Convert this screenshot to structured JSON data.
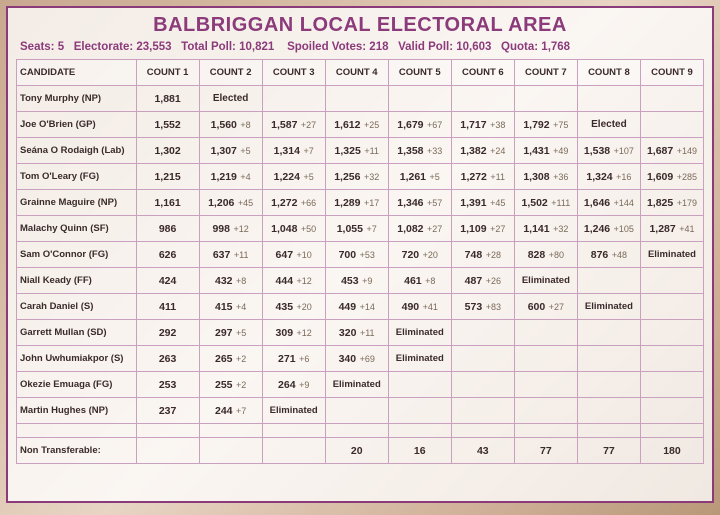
{
  "title": "BALBRIGGAN LOCAL ELECTORAL AREA",
  "stats": {
    "seats_label": "Seats:",
    "seats": "5",
    "electorate_label": "Electorate:",
    "electorate": "23,553",
    "totalpoll_label": "Total Poll:",
    "totalpoll": "10,821",
    "spoiled_label": "Spoiled Votes:",
    "spoiled": "218",
    "validpoll_label": "Valid Poll:",
    "validpoll": "10,603",
    "quota_label": "Quota:",
    "quota": "1,768"
  },
  "columns": [
    "CANDIDATE",
    "COUNT 1",
    "COUNT 2",
    "COUNT 3",
    "COUNT 4",
    "COUNT 5",
    "COUNT 6",
    "COUNT 7",
    "COUNT 8",
    "COUNT 9"
  ],
  "rows": [
    {
      "name": "Tony Murphy (NP)",
      "cells": [
        {
          "v": "1,881"
        },
        {
          "s": "Elected"
        },
        {},
        {},
        {},
        {},
        {},
        {},
        {}
      ]
    },
    {
      "name": "Joe O'Brien (GP)",
      "cells": [
        {
          "v": "1,552"
        },
        {
          "v": "1,560",
          "d": "+8"
        },
        {
          "v": "1,587",
          "d": "+27"
        },
        {
          "v": "1,612",
          "d": "+25"
        },
        {
          "v": "1,679",
          "d": "+67"
        },
        {
          "v": "1,717",
          "d": "+38"
        },
        {
          "v": "1,792",
          "d": "+75"
        },
        {
          "s": "Elected"
        },
        {}
      ]
    },
    {
      "name": "Seána O Rodaigh (Lab)",
      "cells": [
        {
          "v": "1,302"
        },
        {
          "v": "1,307",
          "d": "+5"
        },
        {
          "v": "1,314",
          "d": "+7"
        },
        {
          "v": "1,325",
          "d": "+11"
        },
        {
          "v": "1,358",
          "d": "+33"
        },
        {
          "v": "1,382",
          "d": "+24"
        },
        {
          "v": "1,431",
          "d": "+49"
        },
        {
          "v": "1,538",
          "d": "+107"
        },
        {
          "v": "1,687",
          "d": "+149"
        }
      ]
    },
    {
      "name": "Tom O'Leary (FG)",
      "cells": [
        {
          "v": "1,215"
        },
        {
          "v": "1,219",
          "d": "+4"
        },
        {
          "v": "1,224",
          "d": "+5"
        },
        {
          "v": "1,256",
          "d": "+32"
        },
        {
          "v": "1,261",
          "d": "+5"
        },
        {
          "v": "1,272",
          "d": "+11"
        },
        {
          "v": "1,308",
          "d": "+36"
        },
        {
          "v": "1,324",
          "d": "+16"
        },
        {
          "v": "1,609",
          "d": "+285"
        }
      ]
    },
    {
      "name": "Grainne Maguire (NP)",
      "cells": [
        {
          "v": "1,161"
        },
        {
          "v": "1,206",
          "d": "+45"
        },
        {
          "v": "1,272",
          "d": "+66"
        },
        {
          "v": "1,289",
          "d": "+17"
        },
        {
          "v": "1,346",
          "d": "+57"
        },
        {
          "v": "1,391",
          "d": "+45"
        },
        {
          "v": "1,502",
          "d": "+111"
        },
        {
          "v": "1,646",
          "d": "+144"
        },
        {
          "v": "1,825",
          "d": "+179"
        }
      ]
    },
    {
      "name": "Malachy Quinn (SF)",
      "cells": [
        {
          "v": "986"
        },
        {
          "v": "998",
          "d": "+12"
        },
        {
          "v": "1,048",
          "d": "+50"
        },
        {
          "v": "1,055",
          "d": "+7"
        },
        {
          "v": "1,082",
          "d": "+27"
        },
        {
          "v": "1,109",
          "d": "+27"
        },
        {
          "v": "1,141",
          "d": "+32"
        },
        {
          "v": "1,246",
          "d": "+105"
        },
        {
          "v": "1,287",
          "d": "+41"
        }
      ]
    },
    {
      "name": "Sam O'Connor (FG)",
      "cells": [
        {
          "v": "626"
        },
        {
          "v": "637",
          "d": "+11"
        },
        {
          "v": "647",
          "d": "+10"
        },
        {
          "v": "700",
          "d": "+53"
        },
        {
          "v": "720",
          "d": "+20"
        },
        {
          "v": "748",
          "d": "+28"
        },
        {
          "v": "828",
          "d": "+80"
        },
        {
          "v": "876",
          "d": "+48"
        },
        {
          "s": "Eliminated"
        }
      ]
    },
    {
      "name": "Niall Keady (FF)",
      "cells": [
        {
          "v": "424"
        },
        {
          "v": "432",
          "d": "+8"
        },
        {
          "v": "444",
          "d": "+12"
        },
        {
          "v": "453",
          "d": "+9"
        },
        {
          "v": "461",
          "d": "+8"
        },
        {
          "v": "487",
          "d": "+26"
        },
        {
          "s": "Eliminated"
        },
        {},
        {}
      ]
    },
    {
      "name": "Carah Daniel (S)",
      "cells": [
        {
          "v": "411"
        },
        {
          "v": "415",
          "d": "+4"
        },
        {
          "v": "435",
          "d": "+20"
        },
        {
          "v": "449",
          "d": "+14"
        },
        {
          "v": "490",
          "d": "+41"
        },
        {
          "v": "573",
          "d": "+83"
        },
        {
          "v": "600",
          "d": "+27"
        },
        {
          "s": "Eliminated"
        },
        {}
      ]
    },
    {
      "name": "Garrett Mullan (SD)",
      "cells": [
        {
          "v": "292"
        },
        {
          "v": "297",
          "d": "+5"
        },
        {
          "v": "309",
          "d": "+12"
        },
        {
          "v": "320",
          "d": "+11"
        },
        {
          "s": "Eliminated"
        },
        {},
        {},
        {},
        {}
      ]
    },
    {
      "name": "John Uwhumiakpor (S)",
      "cells": [
        {
          "v": "263"
        },
        {
          "v": "265",
          "d": "+2"
        },
        {
          "v": "271",
          "d": "+6"
        },
        {
          "v": "340",
          "d": "+69"
        },
        {
          "s": "Eliminated"
        },
        {},
        {},
        {},
        {}
      ]
    },
    {
      "name": "Okezie Emuaga (FG)",
      "cells": [
        {
          "v": "253"
        },
        {
          "v": "255",
          "d": "+2"
        },
        {
          "v": "264",
          "d": "+9"
        },
        {
          "s": "Eliminated"
        },
        {},
        {},
        {},
        {},
        {}
      ]
    },
    {
      "name": "Martin Hughes (NP)",
      "cells": [
        {
          "v": "237"
        },
        {
          "v": "244",
          "d": "+7"
        },
        {
          "s": "Eliminated"
        },
        {},
        {},
        {},
        {},
        {},
        {}
      ]
    }
  ],
  "nontrans": {
    "label": "Non Transferable:",
    "cells": [
      "",
      "",
      "",
      "20",
      "16",
      "43",
      "77",
      "77",
      "180"
    ]
  }
}
